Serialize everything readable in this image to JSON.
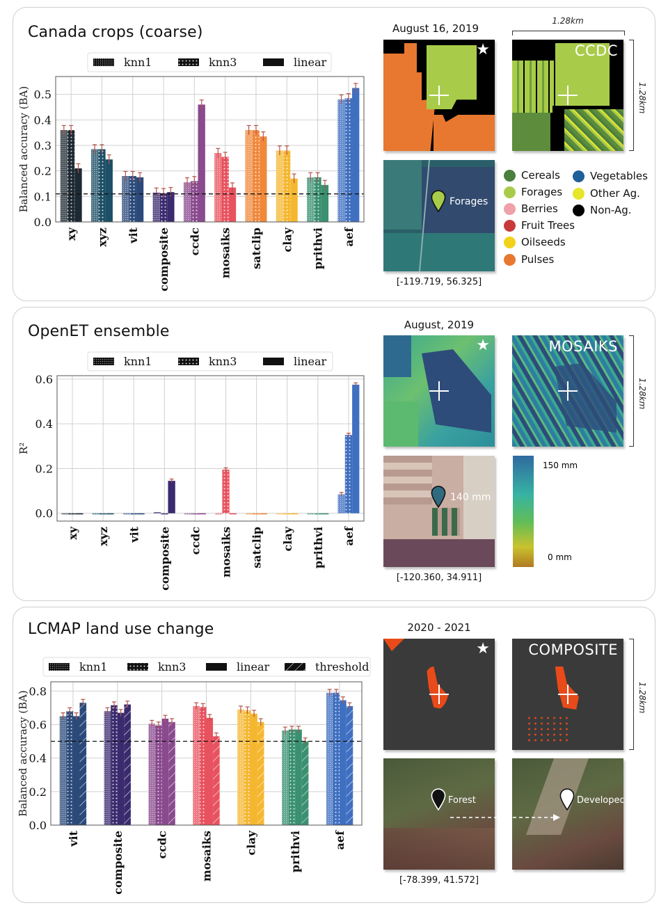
{
  "panel1": {
    "title": "Canada crops (coarse)",
    "date": "August 16, 2019",
    "model_label": "CCDC",
    "scale_label": "1.28km",
    "scale_label_vertical": "1.28km",
    "star_icon": "star-icon",
    "pin_label": "Forages",
    "coords": "[-119.719, 56.325]",
    "class_legend": [
      {
        "label": "Cereals",
        "color": "#4a7f3e"
      },
      {
        "label": "Forages",
        "color": "#a8cc4a"
      },
      {
        "label": "Berries",
        "color": "#f0a0a8"
      },
      {
        "label": "Fruit Trees",
        "color": "#c83a3a"
      },
      {
        "label": "Oilseeds",
        "color": "#f2d21a"
      },
      {
        "label": "Pulses",
        "color": "#e87830"
      },
      {
        "label": "Vegetables",
        "color": "#1f5f9a"
      },
      {
        "label": "Other Ag.",
        "color": "#e6e62a"
      },
      {
        "label": "Non-Ag.",
        "color": "#000000"
      }
    ]
  },
  "panel2": {
    "title": "OpenET ensemble",
    "date": "August, 2019",
    "model_label": "MOSAIKS",
    "scale_label_vertical": "1.28km",
    "pin_label": "140 mm",
    "coords": "[-120.360, 34.911]",
    "colorbar": {
      "max_label": "150 mm",
      "min_label": "0 mm",
      "colors": [
        "#2f6aa0",
        "#36b3a3",
        "#62bd55",
        "#c9c22e",
        "#b07a22"
      ]
    }
  },
  "panel3": {
    "title": "LCMAP land use change",
    "date": "2020 - 2021",
    "model_label": "COMPOSITE",
    "scale_label_vertical": "1.28km",
    "pin_label_before": "Forest",
    "pin_label_after": "Developed",
    "coords": "[-78.399, 41.572]"
  },
  "category_colors": {
    "xy": "#1e2a33",
    "xyz": "#1d4f66",
    "vit": "#2b4a7a",
    "composite": "#3a2a6e",
    "ccdc": "#8a4a8e",
    "mosaiks": "#e8525e",
    "satclip": "#f0883a",
    "clay": "#f5b730",
    "prithvi": "#3a9070",
    "aef": "#3f6fc0"
  },
  "chart_data": [
    {
      "type": "bar",
      "title": "",
      "ylabel": "Balanced accuracy (BA)",
      "ylim": [
        0,
        0.57
      ],
      "yticks": [
        "0.0",
        "0.1",
        "0.2",
        "0.3",
        "0.4",
        "0.5"
      ],
      "grid": true,
      "legend": "top",
      "baseline": 0.11,
      "error": 0.018,
      "categories": [
        "xy",
        "xyz",
        "vit",
        "composite",
        "ccdc",
        "mosaiks",
        "satclip",
        "clay",
        "prithvi",
        "aef"
      ],
      "series": [
        {
          "name": "knn1",
          "values": [
            0.36,
            0.285,
            0.18,
            0.115,
            0.155,
            0.27,
            0.36,
            0.28,
            0.175,
            0.48
          ]
        },
        {
          "name": "knn3",
          "values": [
            0.36,
            0.285,
            0.18,
            0.113,
            0.16,
            0.255,
            0.36,
            0.28,
            0.175,
            0.485
          ]
        },
        {
          "name": "linear",
          "values": [
            0.21,
            0.245,
            0.175,
            0.117,
            0.46,
            0.135,
            0.335,
            0.17,
            0.145,
            0.525
          ]
        }
      ]
    },
    {
      "type": "bar",
      "title": "",
      "ylabel": "R²",
      "ylim": [
        -0.035,
        0.615
      ],
      "yticks": [
        "0.0",
        "0.2",
        "0.4",
        "0.6"
      ],
      "grid": true,
      "legend": "top",
      "error": 0.008,
      "categories": [
        "xy",
        "xyz",
        "vit",
        "composite",
        "ccdc",
        "mosaiks",
        "satclip",
        "clay",
        "prithvi",
        "aef"
      ],
      "series": [
        {
          "name": "knn1",
          "values": [
            -0.005,
            -0.005,
            -0.005,
            0.005,
            -0.005,
            -0.005,
            -0.005,
            -0.005,
            -0.005,
            0.085
          ]
        },
        {
          "name": "knn3",
          "values": [
            -0.005,
            -0.005,
            -0.005,
            -0.005,
            -0.005,
            0.195,
            -0.005,
            -0.005,
            -0.005,
            0.35
          ]
        },
        {
          "name": "linear",
          "values": [
            -0.005,
            -0.005,
            -0.005,
            0.145,
            -0.005,
            -0.005,
            -0.005,
            -0.005,
            -0.005,
            0.575
          ]
        }
      ]
    },
    {
      "type": "bar",
      "title": "",
      "ylabel": "Balanced accuracy (BA)",
      "ylim": [
        0,
        0.855
      ],
      "yticks": [
        "0.0",
        "0.2",
        "0.4",
        "0.6",
        "0.8"
      ],
      "grid": true,
      "legend": "top",
      "baseline": 0.5,
      "error": 0.02,
      "categories": [
        "vit",
        "composite",
        "ccdc",
        "mosaiks",
        "clay",
        "prithvi",
        "aef"
      ],
      "series": [
        {
          "name": "knn1",
          "values": [
            0.65,
            0.68,
            0.605,
            0.71,
            0.69,
            0.565,
            0.79
          ]
        },
        {
          "name": "knn3",
          "values": [
            0.68,
            0.715,
            0.595,
            0.705,
            0.685,
            0.57,
            0.79
          ]
        },
        {
          "name": "linear",
          "values": [
            0.65,
            0.67,
            0.635,
            0.64,
            0.665,
            0.57,
            0.745
          ]
        },
        {
          "name": "threshold",
          "values": [
            0.73,
            0.72,
            0.615,
            0.53,
            0.615,
            0.5,
            0.71
          ]
        }
      ]
    }
  ]
}
